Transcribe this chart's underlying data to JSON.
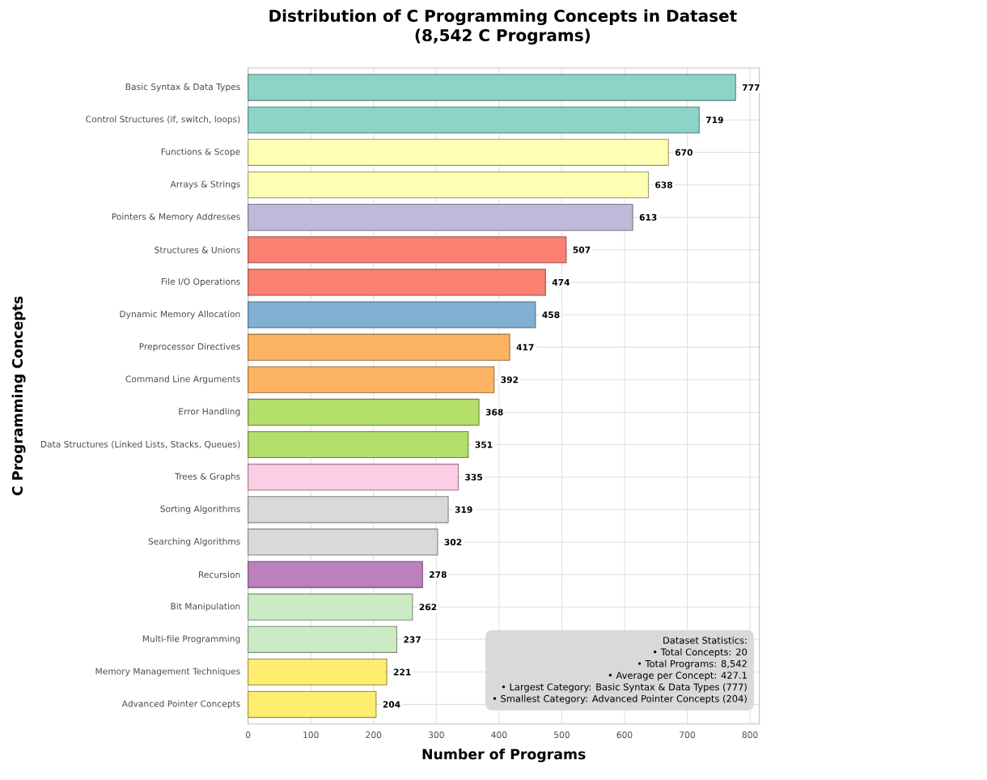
{
  "chart_data": {
    "type": "bar",
    "orientation": "horizontal",
    "title": "Distribution of C Programming Concepts in Dataset\n(8,542 C Programs)",
    "xlabel": "Number of Programs",
    "ylabel": "C Programming Concepts",
    "categories": [
      "Basic Syntax & Data Types",
      "Control Structures (if, switch, loops)",
      "Functions & Scope",
      "Arrays & Strings",
      "Pointers & Memory Addresses",
      "Structures & Unions",
      "File I/O Operations",
      "Dynamic Memory Allocation",
      "Preprocessor Directives",
      "Command Line Arguments",
      "Error Handling",
      "Data Structures (Linked Lists, Stacks, Queues)",
      "Trees & Graphs",
      "Sorting Algorithms",
      "Searching Algorithms",
      "Recursion",
      "Bit Manipulation",
      "Multi-file Programming",
      "Memory Management Techniques",
      "Advanced Pointer Concepts"
    ],
    "values": [
      777,
      719,
      670,
      638,
      613,
      507,
      474,
      458,
      417,
      392,
      368,
      351,
      335,
      319,
      302,
      278,
      262,
      237,
      221,
      204
    ],
    "colors": [
      "#8dd3c7",
      "#8dd3c7",
      "#ffffb3",
      "#ffffb3",
      "#bebada",
      "#fb8072",
      "#fb8072",
      "#80b1d3",
      "#fdb462",
      "#fdb462",
      "#b3de69",
      "#b3de69",
      "#fccde5",
      "#d9d9d9",
      "#d9d9d9",
      "#bc80bd",
      "#ccebc5",
      "#ccebc5",
      "#ffed6f",
      "#ffed6f"
    ],
    "data_labels": true,
    "grid": true,
    "xlim": [
      0,
      815
    ],
    "xticks": [
      0,
      100,
      200,
      300,
      400,
      500,
      600,
      700,
      800
    ],
    "annotations": [
      "Dataset Statistics:",
      "• Total Concepts: 20",
      "• Total Programs: 8,542",
      "• Average per Concept: 427.1",
      "• Largest Category: Basic Syntax & Data Types (777)",
      "• Smallest Category: Advanced Pointer Concepts (204)"
    ]
  }
}
